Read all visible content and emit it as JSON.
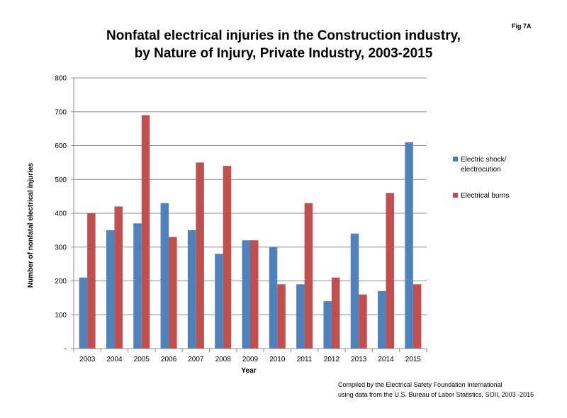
{
  "figure_label": "Fig 7A",
  "credit": {
    "line1": "Compiled by the Electrical Safety Foundation International",
    "line2": "using data from the U.S. Bureau of Labor Statistics, SOII, 2003 -2015"
  },
  "chart_data": {
    "type": "bar",
    "title_lines": [
      "Nonfatal electrical injuries in the Construction industry,",
      "by Nature of Injury, Private Industry, 2003-2015"
    ],
    "xlabel": "Year",
    "ylabel": "Number of nonfatal electrical injuries",
    "categories": [
      "2003",
      "2004",
      "2005",
      "2006",
      "2007",
      "2008",
      "2009",
      "2010",
      "2011",
      "2012",
      "2013",
      "2014",
      "2015"
    ],
    "ylim": [
      0,
      800
    ],
    "yticks": [
      0,
      100,
      200,
      300,
      400,
      500,
      600,
      700,
      800
    ],
    "ytick_labels": [
      "-",
      "100",
      "200",
      "300",
      "400",
      "500",
      "600",
      "700",
      "800"
    ],
    "grid": true,
    "legend_position": "right",
    "series": [
      {
        "name": "Electric shock/ electrocution",
        "legend_lines": [
          "Electric shock/",
          "electrocution"
        ],
        "color": "#4F81BD",
        "values": [
          210,
          350,
          370,
          430,
          350,
          280,
          320,
          300,
          190,
          140,
          340,
          170,
          610
        ]
      },
      {
        "name": "Electrical burns",
        "legend_lines": [
          "Electrical burns"
        ],
        "color": "#C0504D",
        "values": [
          400,
          420,
          690,
          330,
          550,
          540,
          320,
          190,
          430,
          210,
          160,
          460,
          190
        ]
      }
    ]
  }
}
